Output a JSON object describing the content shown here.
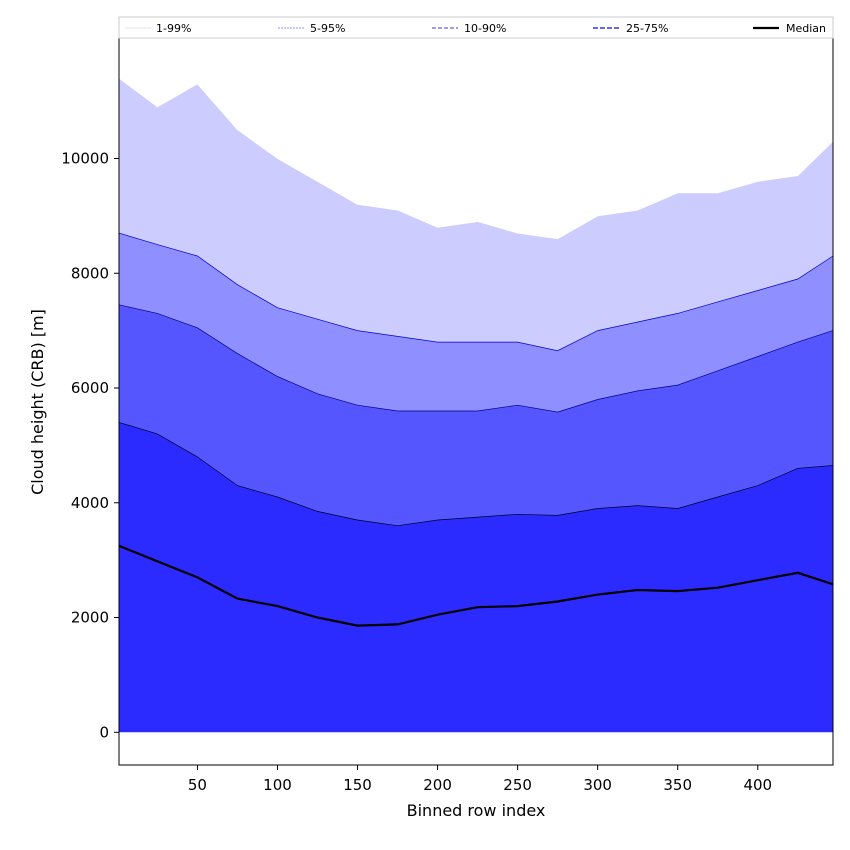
{
  "chart_data": {
    "type": "area",
    "title": "",
    "xlabel": "Binned row index",
    "ylabel": "Cloud height (CRB) [m]",
    "xlim": [
      1,
      447
    ],
    "ylim": [
      -570,
      12100
    ],
    "grid": false,
    "legend_position": "top",
    "x_ticks": [
      50,
      100,
      150,
      200,
      250,
      300,
      350,
      400
    ],
    "y_ticks": [
      0,
      2000,
      4000,
      6000,
      8000,
      10000
    ],
    "x": [
      1,
      25,
      50,
      75,
      100,
      125,
      150,
      175,
      200,
      225,
      250,
      275,
      300,
      325,
      350,
      375,
      400,
      425,
      447
    ],
    "series": [
      {
        "name": "1-99%",
        "color": "#ccccff",
        "edge": "#ffffff",
        "lower": [
          600,
          520,
          260,
          160,
          60,
          30,
          20,
          20,
          10,
          10,
          10,
          10,
          10,
          10,
          40,
          160,
          380,
          330,
          270
        ],
        "upper": [
          11400,
          10900,
          11300,
          10500,
          10000,
          9600,
          9200,
          9100,
          8800,
          8900,
          8700,
          8600,
          9000,
          9100,
          9400,
          9400,
          9600,
          9700,
          10300
        ]
      },
      {
        "name": "5-95%",
        "color": "#8f8fff",
        "edge": "#0000cc",
        "lower": [
          900,
          820,
          680,
          520,
          430,
          380,
          350,
          340,
          330,
          310,
          300,
          300,
          310,
          330,
          430,
          550,
          780,
          760,
          670
        ],
        "upper": [
          8700,
          8500,
          8300,
          7800,
          7400,
          7200,
          7000,
          6900,
          6800,
          6800,
          6800,
          6650,
          7000,
          7150,
          7300,
          7500,
          7700,
          7900,
          8300
        ]
      },
      {
        "name": "10-90%",
        "color": "#5656ff",
        "edge": "#00008b",
        "lower": [
          1550,
          1460,
          1300,
          1130,
          1020,
          950,
          880,
          870,
          960,
          990,
          990,
          1020,
          1060,
          1060,
          1100,
          1170,
          1360,
          1380,
          1300
        ],
        "upper": [
          7450,
          7300,
          7050,
          6600,
          6200,
          5900,
          5700,
          5600,
          5600,
          5600,
          5700,
          5580,
          5800,
          5950,
          6050,
          6300,
          6550,
          6800,
          7000
        ]
      },
      {
        "name": "25-75%",
        "color": "#2b2bff",
        "edge": "#000022",
        "lower": [
          0,
          0,
          0,
          0,
          0,
          0,
          0,
          0,
          0,
          0,
          0,
          0,
          0,
          0,
          0,
          0,
          0,
          0,
          0
        ],
        "upper": [
          5400,
          5200,
          4800,
          4300,
          4100,
          3850,
          3700,
          3600,
          3700,
          3750,
          3800,
          3780,
          3900,
          3950,
          3900,
          4100,
          4300,
          4600,
          4650
        ]
      },
      {
        "name": "Median",
        "color": "#000000",
        "values": [
          3250,
          2980,
          2700,
          2330,
          2200,
          2000,
          1860,
          1880,
          2050,
          2180,
          2200,
          2280,
          2400,
          2480,
          2460,
          2520,
          2650,
          2780,
          2580
        ]
      }
    ]
  }
}
